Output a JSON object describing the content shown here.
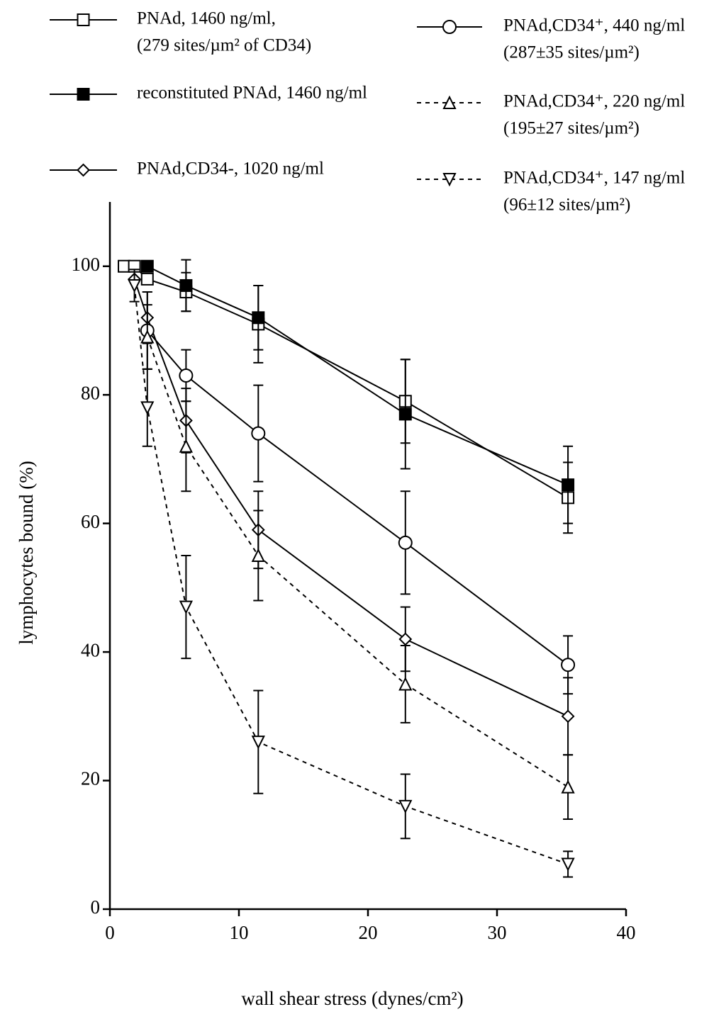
{
  "chart_data": {
    "type": "line",
    "xlabel": "wall shear stress (dynes/cm²)",
    "ylabel": "lymphocytes bound (%)",
    "xlim": [
      0,
      40
    ],
    "xticks": [
      0,
      10,
      20,
      30,
      40
    ],
    "ylim": [
      0,
      110
    ],
    "yticks": [
      0,
      20,
      40,
      60,
      80,
      100
    ],
    "series": [
      {
        "name": [
          "PNAd, 1460 ng/ml,",
          "(279 sites/µm² of CD34)"
        ],
        "color": "#000000",
        "marker": "square-open",
        "dashed": false,
        "x": [
          1.1,
          1.9,
          2.9,
          5.9,
          11.5,
          22.9,
          35.5
        ],
        "values": [
          100,
          100,
          98,
          96,
          91,
          79,
          64
        ],
        "errors": [
          null,
          null,
          null,
          3,
          6,
          6.5,
          5.5
        ]
      },
      {
        "name": [
          "reconstituted PNAd, 1460 ng/ml"
        ],
        "color": "#000000",
        "marker": "square-filled",
        "dashed": false,
        "x": [
          2.9,
          5.9,
          11.5,
          22.9,
          35.5
        ],
        "values": [
          100,
          97,
          92,
          77,
          66
        ],
        "errors": [
          null,
          4,
          5,
          8.5,
          6
        ]
      },
      {
        "name": [
          "PNAd,CD34-, 1020 ng/ml"
        ],
        "color": "#000000",
        "marker": "diamond",
        "dashed": false,
        "x": [
          1.9,
          2.9,
          5.9,
          11.5,
          22.9,
          35.5
        ],
        "values": [
          98,
          92,
          76,
          59,
          42,
          30
        ],
        "errors": [
          null,
          4,
          5,
          6,
          5,
          6
        ]
      },
      {
        "name": [
          "PNAd,CD34⁺, 440 ng/ml",
          "(287±35 sites/µm²)"
        ],
        "color": "#000000",
        "marker": "circle",
        "dashed": false,
        "x": [
          2.9,
          5.9,
          11.5,
          22.9,
          35.5
        ],
        "values": [
          90,
          83,
          74,
          57,
          38
        ],
        "errors": [
          6,
          4,
          7.5,
          8,
          4.5
        ]
      },
      {
        "name": [
          "PNAd,CD34⁺, 220 ng/ml",
          "(195±27 sites/µm²)"
        ],
        "color": "#000000",
        "marker": "triangle-up",
        "dashed": true,
        "x": [
          2.9,
          5.9,
          11.5,
          22.9,
          35.5
        ],
        "values": [
          89,
          72,
          55,
          35,
          19
        ],
        "errors": [
          5,
          7,
          7,
          6,
          5
        ]
      },
      {
        "name": [
          "PNAd,CD34⁺, 147 ng/ml",
          "(96±12 sites/µm²)"
        ],
        "color": "#000000",
        "marker": "triangle-down",
        "dashed": true,
        "x": [
          1.9,
          2.9,
          5.9,
          11.5,
          22.9,
          35.5
        ],
        "values": [
          97,
          78,
          47,
          26,
          16,
          7
        ],
        "errors": [
          2.5,
          6,
          8,
          8,
          5,
          2
        ]
      }
    ]
  }
}
